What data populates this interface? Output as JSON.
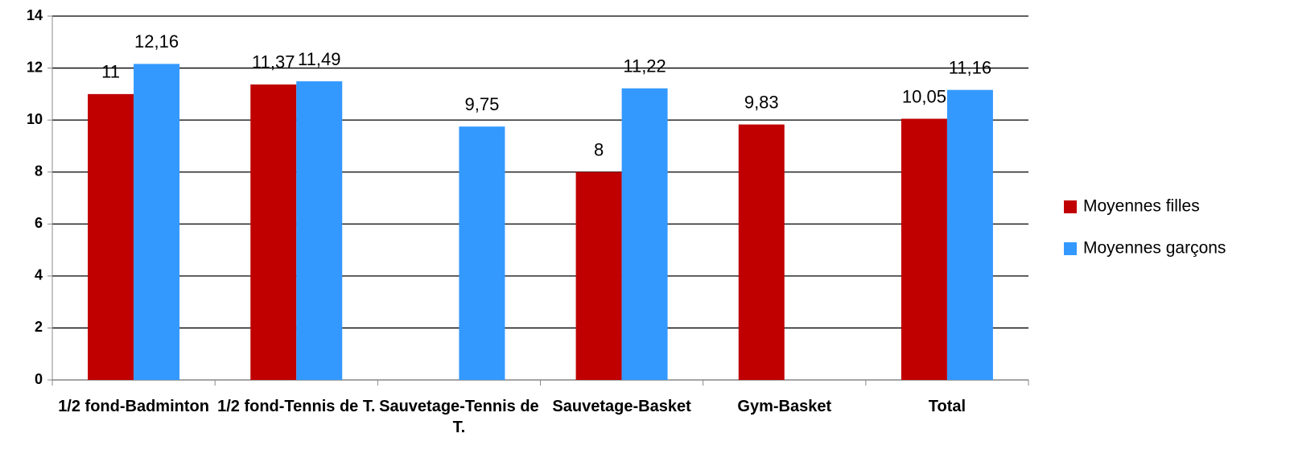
{
  "chart_data": {
    "type": "bar",
    "categories": [
      "1/2 fond-Badminton",
      "1/2 fond-Tennis de T.",
      "Sauvetage-Tennis de T.",
      "Sauvetage-Basket",
      "Gym-Basket",
      "Total"
    ],
    "series": [
      {
        "name": "Moyennes filles",
        "color": "#c00000",
        "values": [
          11,
          11.37,
          null,
          8,
          9.83,
          10.05
        ],
        "value_labels": [
          "11",
          "11,37",
          null,
          "8",
          "9,83",
          "10,05"
        ]
      },
      {
        "name": "Moyennes garçons",
        "color": "#3399ff",
        "values": [
          12.16,
          11.49,
          9.75,
          11.22,
          null,
          11.16
        ],
        "value_labels": [
          "12,16",
          "11,49",
          "9,75",
          "11,22",
          null,
          "11,16"
        ]
      }
    ],
    "ylim": [
      0,
      14
    ],
    "yticks": [
      0,
      2,
      4,
      6,
      8,
      10,
      12,
      14
    ],
    "grid": true,
    "legend": "right"
  }
}
